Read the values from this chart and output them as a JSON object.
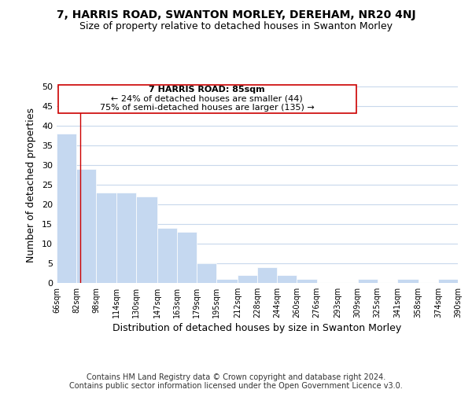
{
  "title": "7, HARRIS ROAD, SWANTON MORLEY, DEREHAM, NR20 4NJ",
  "subtitle": "Size of property relative to detached houses in Swanton Morley",
  "xlabel": "Distribution of detached houses by size in Swanton Morley",
  "ylabel": "Number of detached properties",
  "bar_edges": [
    66,
    82,
    98,
    114,
    130,
    147,
    163,
    179,
    195,
    212,
    228,
    244,
    260,
    276,
    293,
    309,
    325,
    341,
    358,
    374,
    390
  ],
  "bar_heights": [
    38,
    29,
    23,
    23,
    22,
    14,
    13,
    5,
    1,
    2,
    4,
    2,
    1,
    0,
    0,
    1,
    0,
    1,
    0,
    1
  ],
  "bar_color": "#c5d8f0",
  "bar_edge_color": "#ffffff",
  "reference_line_x": 85,
  "reference_line_color": "#cc0000",
  "ylim": [
    0,
    50
  ],
  "xlim": [
    66,
    390
  ],
  "tick_labels": [
    "66sqm",
    "82sqm",
    "98sqm",
    "114sqm",
    "130sqm",
    "147sqm",
    "163sqm",
    "179sqm",
    "195sqm",
    "212sqm",
    "228sqm",
    "244sqm",
    "260sqm",
    "276sqm",
    "293sqm",
    "309sqm",
    "325sqm",
    "341sqm",
    "358sqm",
    "374sqm",
    "390sqm"
  ],
  "annotation_title": "7 HARRIS ROAD: 85sqm",
  "annotation_line1": "← 24% of detached houses are smaller (44)",
  "annotation_line2": "75% of semi-detached houses are larger (135) →",
  "annotation_box_color": "#ffffff",
  "annotation_box_edge_color": "#cc0000",
  "footer_line1": "Contains HM Land Registry data © Crown copyright and database right 2024.",
  "footer_line2": "Contains public sector information licensed under the Open Government Licence v3.0.",
  "background_color": "#ffffff",
  "grid_color": "#c8d8ec",
  "title_fontsize": 10,
  "subtitle_fontsize": 9
}
